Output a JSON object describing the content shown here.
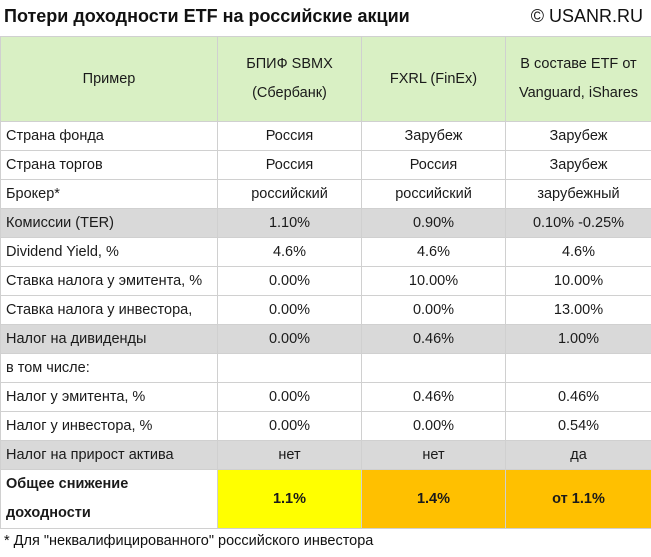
{
  "header": {
    "title": "Потери доходности ETF на российские акции",
    "site": "© USANR.RU"
  },
  "table": {
    "columns": [
      "Пример",
      "БПИФ SBMX (Сбербанк)",
      "FXRL (FinEx)",
      "В составе ETF от Vanguard, iShares"
    ],
    "rows": [
      [
        "Страна фонда",
        "Россия",
        "Зарубеж",
        "Зарубеж"
      ],
      [
        "Страна торгов",
        "Россия",
        "Россия",
        "Зарубеж"
      ],
      [
        "Брокер*",
        "российский",
        "российский",
        "зарубежный"
      ],
      [
        "Комиссии (TER)",
        "1.10%",
        "0.90%",
        "0.10% -0.25%"
      ],
      [
        "Dividend Yield, %",
        "4.6%",
        "4.6%",
        "4.6%"
      ],
      [
        "Ставка налога у эмитента, %",
        "0.00%",
        "10.00%",
        "10.00%"
      ],
      [
        "Ставка налога у инвестора,",
        "0.00%",
        "0.00%",
        "13.00%"
      ],
      [
        "Налог на дивиденды",
        "0.00%",
        "0.46%",
        "1.00%"
      ],
      [
        "в том числе:",
        "",
        "",
        ""
      ],
      [
        "Налог у эмитента, %",
        "0.00%",
        "0.46%",
        "0.46%"
      ],
      [
        "Налог у инвестора, %",
        "0.00%",
        "0.00%",
        "0.54%"
      ],
      [
        "Налог на прирост актива",
        "нет",
        "нет",
        "да"
      ]
    ],
    "total": [
      "Общее снижение доходности",
      "1.1%",
      "1.4%",
      "от 1.1%"
    ]
  },
  "footnote": "* Для \"неквалифицированного\" российского инвестора",
  "colors": {
    "header_bg": "#d9f0c4",
    "grey_row": "#d9d9d9",
    "yellow": "#ffff00",
    "orange": "#ffc000"
  }
}
